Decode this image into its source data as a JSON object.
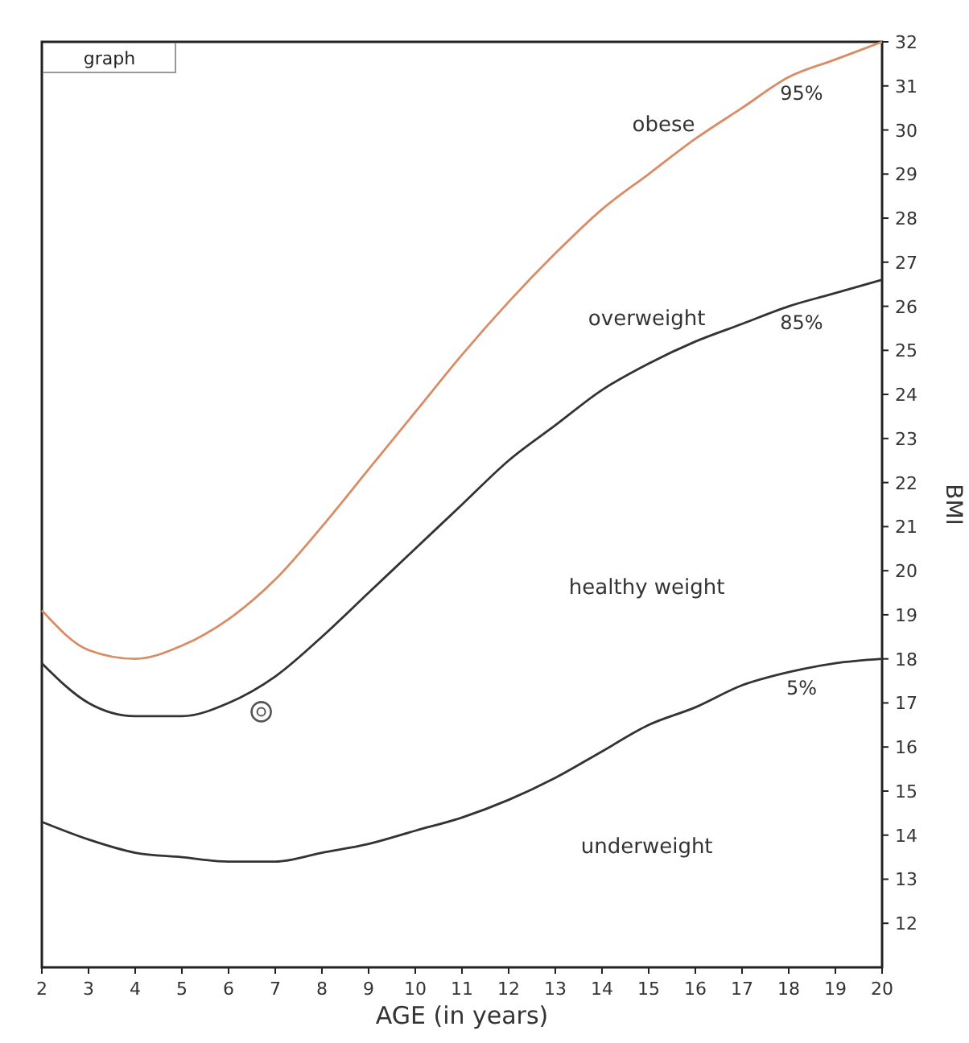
{
  "chart_data": {
    "type": "line",
    "xlabel": "AGE  (in years)",
    "ylabel": "BMI",
    "x": [
      2,
      3,
      4,
      5,
      6,
      7,
      8,
      9,
      10,
      11,
      12,
      13,
      14,
      15,
      16,
      17,
      18,
      19,
      20
    ],
    "series": [
      {
        "name": "95%",
        "color": "#d98c66",
        "values": [
          19.1,
          18.2,
          18.0,
          18.3,
          18.9,
          19.8,
          21.0,
          22.3,
          23.6,
          24.9,
          26.1,
          27.2,
          28.2,
          29.0,
          29.8,
          30.5,
          31.2,
          31.6,
          32.0
        ]
      },
      {
        "name": "85%",
        "color": "#333333",
        "values": [
          17.9,
          17.0,
          16.7,
          16.7,
          17.0,
          17.6,
          18.5,
          19.5,
          20.5,
          21.5,
          22.5,
          23.3,
          24.1,
          24.7,
          25.2,
          25.6,
          26.0,
          26.3,
          26.6
        ]
      },
      {
        "name": "5%",
        "color": "#333333",
        "values": [
          14.3,
          13.9,
          13.6,
          13.5,
          13.4,
          13.4,
          13.6,
          13.8,
          14.1,
          14.4,
          14.8,
          15.3,
          15.9,
          16.5,
          16.9,
          17.4,
          17.7,
          17.9,
          18.0
        ]
      },
      {
        "type": "scatter",
        "color": "#555555",
        "marker": "circle",
        "x": [
          6.7
        ],
        "values": [
          16.8
        ]
      }
    ],
    "xlim": [
      2,
      20
    ],
    "xticks": [
      2,
      3,
      4,
      5,
      6,
      7,
      8,
      9,
      10,
      11,
      12,
      13,
      14,
      15,
      16,
      17,
      18,
      19,
      20
    ],
    "ylim": [
      11,
      32
    ],
    "yticks": [
      12,
      13,
      14,
      15,
      16,
      17,
      18,
      19,
      20,
      21,
      22,
      23,
      24,
      25,
      26,
      27,
      28,
      29,
      30,
      31,
      32
    ],
    "grid": false,
    "marker": "none",
    "line_style": "solid",
    "annotations": [
      "graph",
      "obese",
      "overweight",
      "healthy weight",
      "underweight"
    ]
  }
}
